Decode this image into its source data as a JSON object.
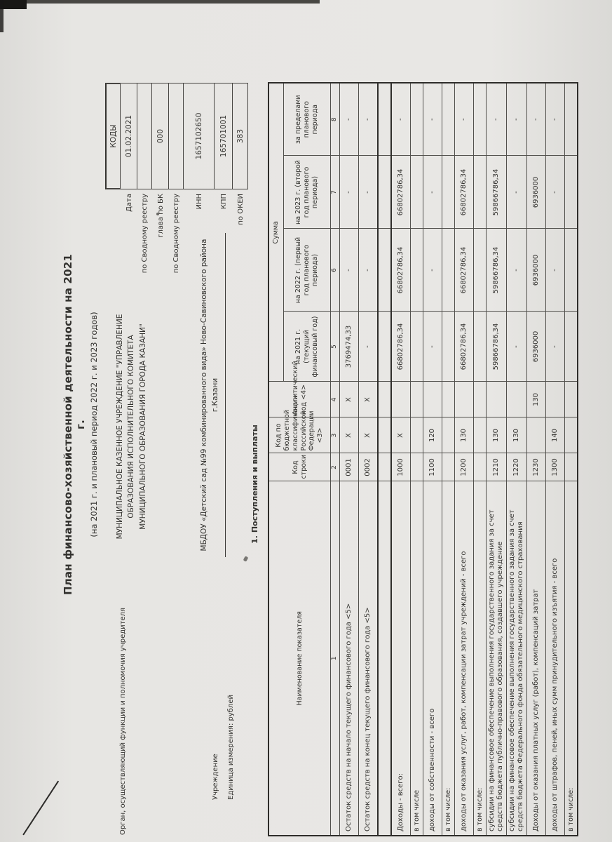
{
  "title": {
    "line1": "План финансово-хозяйственной деятельности на 2021 г.",
    "line2": "(на 2021 г. и плановый период 2022 г. и 2023 годов)"
  },
  "codes_box": {
    "header": "КОДЫ",
    "rows": [
      {
        "label": "Дата",
        "value": "01.02.2021"
      },
      {
        "label": "по Сводному реестру",
        "value": ""
      },
      {
        "label": "глава по БК",
        "value": "000"
      },
      {
        "label": "по Сводному реестру",
        "value": ""
      },
      {
        "label": "ИНН",
        "value": "1657102650"
      },
      {
        "label": "КПП",
        "value": "165701001"
      },
      {
        "label": "по ОКЕИ",
        "value": "383"
      }
    ]
  },
  "requisites": {
    "organ_label": "Орган, осуществляющий функции и полномочия учредителя",
    "organ_value_line1": "МУНИЦИПАЛЬНОЕ КАЗЕННОЕ УЧРЕЖДЕНИЕ \"УПРАВЛЕНИЕ",
    "organ_value_line2": "ОБРАЗОВАНИЯ ИСПОЛНИТЕЛЬНОГО КОМИТЕТА",
    "organ_value_line3": "МУНИЦИПАЛЬНОГО ОБРАЗОВАНИЯ ГОРОДА КАЗАНИ\"",
    "institution_label": "Учреждение",
    "institution_value": "МБДОУ «Детский сад №99 комбинированного вида» Ново-Савиновского района г.Казани",
    "unit_label": "Единица измерения: рублей"
  },
  "section_title": "1. Поступления и выплаты",
  "table": {
    "headers": {
      "name": "Наименование показателя",
      "line_code": "Код строки",
      "budget_code": "Код по бюджетной классификации Российской Федерации <3>",
      "analytic_code": "Аналитический код <4>",
      "sum": "Сумма",
      "y2021": "на 2021 г. (текущий финансовый год)",
      "y2022": "на 2022 г. (первый год планового периода)",
      "y2023": "на 2023 г. (второй год планового периода)",
      "beyond": "за пределами планового периода"
    },
    "numbering": [
      "1",
      "2",
      "3",
      "4",
      "5",
      "6",
      "7",
      "8"
    ],
    "rows": [
      {
        "name": "Остаток средств на начало текущего финансового года <5>",
        "code": "0001",
        "kbk": "X",
        "analytic": "X",
        "y2021": "3769474,33",
        "y2022": "-",
        "y2023": "-",
        "beyond": "-"
      },
      {
        "name": "Остаток средств на конец текущего финансового года <5>",
        "code": "0002",
        "kbk": "X",
        "analytic": "X",
        "y2021": "-",
        "y2022": "-",
        "y2023": "-",
        "beyond": "-"
      },
      {
        "name": "",
        "code": "",
        "kbk": "",
        "analytic": "",
        "y2021": "",
        "y2022": "",
        "y2023": "",
        "beyond": ""
      },
      {
        "name": "Доходы - всего:",
        "code": "1000",
        "kbk": "X",
        "analytic": "",
        "y2021": "66802786,34",
        "y2022": "66802786,34",
        "y2023": "66802786,34",
        "beyond": "-"
      },
      {
        "name": "в том числе",
        "code": "",
        "kbk": "",
        "analytic": "",
        "y2021": "",
        "y2022": "",
        "y2023": "",
        "beyond": ""
      },
      {
        "name": "доходы от собственности - всего",
        "code": "1100",
        "kbk": "120",
        "analytic": "",
        "y2021": "-",
        "y2022": "-",
        "y2023": "-",
        "beyond": "-"
      },
      {
        "name": "в том числе:",
        "code": "",
        "kbk": "",
        "analytic": "",
        "y2021": "",
        "y2022": "",
        "y2023": "",
        "beyond": ""
      },
      {
        "name": "доходы от оказания услуг, работ, компенсации затрат учреждений - всего",
        "code": "1200",
        "kbk": "130",
        "analytic": "",
        "y2021": "66802786,34",
        "y2022": "66802786,34",
        "y2023": "66802786,34",
        "beyond": "-"
      },
      {
        "name": "в том числе:",
        "code": "",
        "kbk": "",
        "analytic": "",
        "y2021": "",
        "y2022": "",
        "y2023": "",
        "beyond": ""
      },
      {
        "name": "субсидии на финансовое обеспечение выполнения государственного задания за счет средств бюджета публично-правового образования, создавшего учреждение",
        "code": "1210",
        "kbk": "130",
        "analytic": "",
        "y2021": "59866786,34",
        "y2022": "59866786,34",
        "y2023": "59866786,34",
        "beyond": "-"
      },
      {
        "name": "субсидии на финансовое обеспечение выполнения государственного задания за счет средств бюджета Федерального фонда обязательного медицинского страхования",
        "code": "1220",
        "kbk": "130",
        "analytic": "",
        "y2021": "-",
        "y2022": "-",
        "y2023": "-",
        "beyond": "-"
      },
      {
        "name": "Доходы от оказания платных услуг (работ), компенсаций затрат",
        "code": "1230",
        "kbk": "",
        "analytic": "130",
        "y2021": "6936000",
        "y2022": "6936000",
        "y2023": "6936000",
        "beyond": "-"
      },
      {
        "name": "доходы от штрафов, пеней, иных сумм принудительного изъятия - всего",
        "code": "1300",
        "kbk": "140",
        "analytic": "",
        "y2021": "-",
        "y2022": "-",
        "y2023": "-",
        "beyond": "-"
      },
      {
        "name": "в том числе:",
        "code": "",
        "kbk": "",
        "analytic": "",
        "y2021": "",
        "y2022": "",
        "y2023": "",
        "beyond": ""
      }
    ]
  }
}
